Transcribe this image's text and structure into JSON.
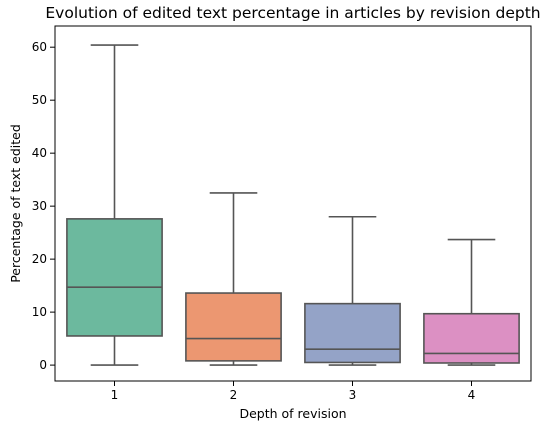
{
  "chart_data": {
    "type": "box",
    "title": "Evolution of edited text percentage in articles by revision depth",
    "xlabel": "Depth of revision",
    "ylabel": "Percentage of text edited",
    "ylim": [
      -3,
      64
    ],
    "yticks": [
      0,
      10,
      20,
      30,
      40,
      50,
      60
    ],
    "categories": [
      "1",
      "2",
      "3",
      "4"
    ],
    "boxes": [
      {
        "category": "1",
        "min": 0,
        "q1": 5.5,
        "median": 14.7,
        "q3": 27.6,
        "max": 60.4,
        "color": "#6cb99e"
      },
      {
        "category": "2",
        "min": 0,
        "q1": 0.8,
        "median": 5.0,
        "q3": 13.6,
        "max": 32.5,
        "color": "#ec9771"
      },
      {
        "category": "3",
        "min": 0,
        "q1": 0.5,
        "median": 3.0,
        "q3": 11.6,
        "max": 28.0,
        "color": "#94a3c7"
      },
      {
        "category": "4",
        "min": 0,
        "q1": 0.4,
        "median": 2.2,
        "q3": 9.7,
        "max": 23.7,
        "color": "#dc90c3"
      }
    ],
    "grid": false,
    "legend": "none"
  }
}
